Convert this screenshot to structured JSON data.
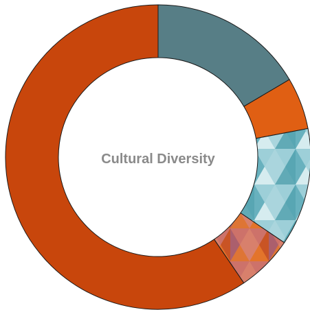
{
  "chart_data": {
    "type": "pie",
    "title": "Cultural Diversity",
    "donut": true,
    "legend": "none",
    "slices": [
      {
        "value": 16.5,
        "color": "#577e86",
        "pattern": "none"
      },
      {
        "value": 5.5,
        "color": "#e05f13",
        "pattern": "none"
      },
      {
        "value": 12.5,
        "color": "#5aa9b8",
        "pattern": "triangles"
      },
      {
        "value": 6.0,
        "color": "#d9581c",
        "pattern": "triangles"
      },
      {
        "value": 59.5,
        "color": "#c8460c",
        "pattern": "none"
      }
    ]
  }
}
